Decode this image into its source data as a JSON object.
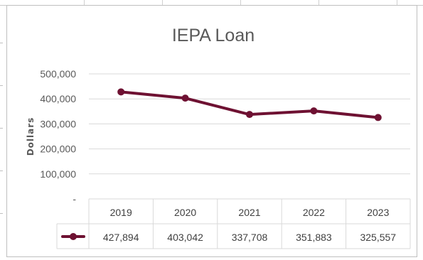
{
  "chart_data": {
    "type": "line",
    "title": "IEPA Loan",
    "ylabel": "Dollars",
    "xlabel": "",
    "categories": [
      "2019",
      "2020",
      "2021",
      "2022",
      "2023"
    ],
    "series": [
      {
        "name": "",
        "color": "#6e1132",
        "values": [
          427894,
          403042,
          337708,
          351883,
          325557
        ],
        "value_labels": [
          "427,894",
          "403,042",
          "337,708",
          "351,883",
          "325,557"
        ]
      }
    ],
    "ylim": [
      0,
      500000
    ],
    "yticks": [
      0,
      100000,
      200000,
      300000,
      400000,
      500000
    ],
    "ytick_labels": [
      "-",
      "100,000",
      "200,000",
      "300,000",
      "400,000",
      "500,000"
    ],
    "grid": true,
    "legend": "data-table",
    "data_table": true
  }
}
